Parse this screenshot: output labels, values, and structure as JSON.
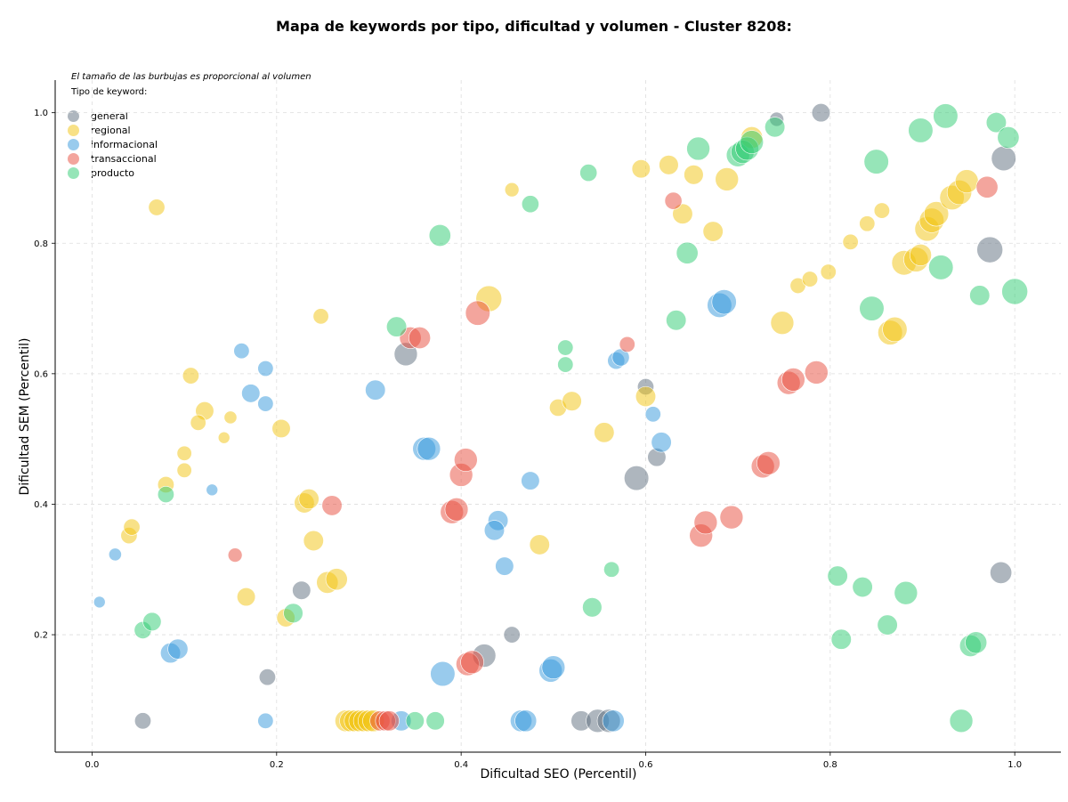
{
  "chart_data": {
    "type": "scatter",
    "title": "Mapa de keywords por tipo, dificultad y volumen - Cluster 8208:",
    "note": "El tamaño de las burbujas es proporcional al volumen",
    "legend_title": "Tipo de keyword:",
    "legend_position": "top-left",
    "xlabel": "Dificultad SEO (Percentil)",
    "ylabel": "Dificultad SEM (Percentil)",
    "xlim": [
      -0.04,
      1.05
    ],
    "ylim": [
      0.02,
      1.05
    ],
    "xticks": [
      "0.0",
      "0.2",
      "0.4",
      "0.6",
      "0.8",
      "1.0"
    ],
    "yticks": [
      "0.2",
      "0.4",
      "0.6",
      "0.8",
      "1.0"
    ],
    "grid": true,
    "point_format": "[x, y, volume_relative]",
    "series": [
      {
        "name": "general",
        "color": "#5d6d7e",
        "points": [
          [
            0.055,
            0.068,
            2
          ],
          [
            0.19,
            0.135,
            2
          ],
          [
            0.227,
            0.268,
            2.5
          ],
          [
            0.34,
            0.63,
            4
          ],
          [
            0.425,
            0.168,
            4
          ],
          [
            0.455,
            0.2,
            2
          ],
          [
            0.53,
            0.068,
            3
          ],
          [
            0.548,
            0.068,
            4
          ],
          [
            0.56,
            0.068,
            4
          ],
          [
            0.59,
            0.44,
            4.5
          ],
          [
            0.6,
            0.58,
            2
          ],
          [
            0.612,
            0.472,
            2.5
          ],
          [
            0.742,
            0.99,
            1.5
          ],
          [
            0.79,
            1.0,
            2.5
          ],
          [
            0.973,
            0.79,
            5
          ],
          [
            0.988,
            0.93,
            4.5
          ],
          [
            0.985,
            0.295,
            3.5
          ]
        ]
      },
      {
        "name": "regional",
        "color": "#f1c40f",
        "points": [
          [
            0.07,
            0.855,
            2
          ],
          [
            0.107,
            0.597,
            2
          ],
          [
            0.122,
            0.543,
            2.5
          ],
          [
            0.115,
            0.525,
            1.8
          ],
          [
            0.15,
            0.533,
            1.2
          ],
          [
            0.143,
            0.502,
            1
          ],
          [
            0.1,
            0.478,
            1.6
          ],
          [
            0.1,
            0.452,
            1.6
          ],
          [
            0.08,
            0.43,
            2
          ],
          [
            0.04,
            0.352,
            2
          ],
          [
            0.043,
            0.365,
            2
          ],
          [
            0.167,
            0.258,
            2.5
          ],
          [
            0.205,
            0.516,
            2.5
          ],
          [
            0.23,
            0.402,
            3
          ],
          [
            0.235,
            0.408,
            3
          ],
          [
            0.24,
            0.344,
            3
          ],
          [
            0.248,
            0.688,
            1.8
          ],
          [
            0.255,
            0.28,
            3.5
          ],
          [
            0.265,
            0.285,
            3.5
          ],
          [
            0.21,
            0.226,
            2.5
          ],
          [
            0.275,
            0.068,
            3.5
          ],
          [
            0.28,
            0.068,
            3.5
          ],
          [
            0.285,
            0.068,
            3.5
          ],
          [
            0.29,
            0.068,
            3.5
          ],
          [
            0.295,
            0.068,
            3.5
          ],
          [
            0.3,
            0.068,
            3.5
          ],
          [
            0.305,
            0.068,
            3.5
          ],
          [
            0.43,
            0.715,
            5
          ],
          [
            0.455,
            0.882,
            1.5
          ],
          [
            0.485,
            0.338,
            3
          ],
          [
            0.505,
            0.548,
            2.2
          ],
          [
            0.52,
            0.558,
            2.8
          ],
          [
            0.555,
            0.51,
            3
          ],
          [
            0.595,
            0.914,
            2.5
          ],
          [
            0.6,
            0.565,
            3
          ],
          [
            0.625,
            0.92,
            2.8
          ],
          [
            0.64,
            0.845,
            3
          ],
          [
            0.652,
            0.905,
            2.8
          ],
          [
            0.673,
            0.818,
            3
          ],
          [
            0.688,
            0.898,
            4
          ],
          [
            0.715,
            0.962,
            3.5
          ],
          [
            0.748,
            0.678,
            4
          ],
          [
            0.765,
            0.735,
            1.8
          ],
          [
            0.778,
            0.745,
            1.8
          ],
          [
            0.798,
            0.756,
            1.8
          ],
          [
            0.822,
            0.802,
            1.8
          ],
          [
            0.84,
            0.83,
            1.8
          ],
          [
            0.856,
            0.85,
            1.8
          ],
          [
            0.865,
            0.663,
            4.5
          ],
          [
            0.87,
            0.668,
            4.5
          ],
          [
            0.88,
            0.77,
            4.5
          ],
          [
            0.893,
            0.775,
            4.5
          ],
          [
            0.898,
            0.782,
            3.5
          ],
          [
            0.905,
            0.822,
            4.5
          ],
          [
            0.91,
            0.835,
            4.5
          ],
          [
            0.915,
            0.845,
            4.5
          ],
          [
            0.932,
            0.87,
            4.5
          ],
          [
            0.94,
            0.878,
            4.5
          ],
          [
            0.948,
            0.895,
            4
          ]
        ]
      },
      {
        "name": "informacional",
        "color": "#3498db",
        "points": [
          [
            0.008,
            0.25,
            1
          ],
          [
            0.025,
            0.323,
            1.2
          ],
          [
            0.085,
            0.172,
            3
          ],
          [
            0.093,
            0.178,
            3
          ],
          [
            0.13,
            0.422,
            1
          ],
          [
            0.162,
            0.635,
            1.8
          ],
          [
            0.172,
            0.57,
            2.5
          ],
          [
            0.188,
            0.608,
            1.8
          ],
          [
            0.188,
            0.554,
            1.8
          ],
          [
            0.188,
            0.068,
            1.8
          ],
          [
            0.307,
            0.575,
            3
          ],
          [
            0.335,
            0.068,
            3
          ],
          [
            0.36,
            0.485,
            4
          ],
          [
            0.365,
            0.485,
            4
          ],
          [
            0.38,
            0.14,
            4.5
          ],
          [
            0.44,
            0.375,
            3
          ],
          [
            0.436,
            0.36,
            3
          ],
          [
            0.447,
            0.305,
            2.5
          ],
          [
            0.475,
            0.436,
            2.5
          ],
          [
            0.465,
            0.068,
            3.5
          ],
          [
            0.47,
            0.068,
            3.5
          ],
          [
            0.497,
            0.145,
            4
          ],
          [
            0.5,
            0.15,
            4
          ],
          [
            0.565,
            0.068,
            3.5
          ],
          [
            0.568,
            0.62,
            2.2
          ],
          [
            0.573,
            0.625,
            2.2
          ],
          [
            0.608,
            0.538,
            1.8
          ],
          [
            0.617,
            0.495,
            3
          ],
          [
            0.68,
            0.705,
            4.5
          ],
          [
            0.685,
            0.71,
            4.5
          ]
        ]
      },
      {
        "name": "transaccional",
        "color": "#e74c3c",
        "points": [
          [
            0.155,
            0.322,
            1.5
          ],
          [
            0.26,
            0.398,
            3
          ],
          [
            0.312,
            0.068,
            3
          ],
          [
            0.318,
            0.068,
            3
          ],
          [
            0.322,
            0.068,
            3
          ],
          [
            0.345,
            0.655,
            3.5
          ],
          [
            0.355,
            0.655,
            3.5
          ],
          [
            0.39,
            0.388,
            4
          ],
          [
            0.395,
            0.392,
            4
          ],
          [
            0.4,
            0.445,
            4
          ],
          [
            0.405,
            0.468,
            4
          ],
          [
            0.407,
            0.155,
            4
          ],
          [
            0.412,
            0.158,
            4
          ],
          [
            0.418,
            0.693,
            4.5
          ],
          [
            0.58,
            0.645,
            1.8
          ],
          [
            0.63,
            0.865,
            2.2
          ],
          [
            0.66,
            0.352,
            4
          ],
          [
            0.665,
            0.372,
            4
          ],
          [
            0.693,
            0.38,
            4
          ],
          [
            0.727,
            0.458,
            4
          ],
          [
            0.733,
            0.463,
            4
          ],
          [
            0.755,
            0.586,
            4
          ],
          [
            0.76,
            0.591,
            4
          ],
          [
            0.785,
            0.602,
            4
          ],
          [
            0.97,
            0.886,
            3.5
          ]
        ]
      },
      {
        "name": "producto",
        "color": "#2ecc71",
        "points": [
          [
            0.055,
            0.207,
            2.2
          ],
          [
            0.065,
            0.22,
            2.5
          ],
          [
            0.08,
            0.415,
            2
          ],
          [
            0.218,
            0.233,
            2.8
          ],
          [
            0.33,
            0.672,
            3
          ],
          [
            0.35,
            0.068,
            2.5
          ],
          [
            0.372,
            0.068,
            2.5
          ],
          [
            0.377,
            0.812,
            3.5
          ],
          [
            0.475,
            0.86,
            2.2
          ],
          [
            0.513,
            0.64,
            1.8
          ],
          [
            0.513,
            0.614,
            1.8
          ],
          [
            0.538,
            0.908,
            2.2
          ],
          [
            0.542,
            0.242,
            2.8
          ],
          [
            0.563,
            0.3,
            1.8
          ],
          [
            0.633,
            0.682,
            3
          ],
          [
            0.645,
            0.785,
            3.5
          ],
          [
            0.657,
            0.945,
            4
          ],
          [
            0.7,
            0.935,
            4
          ],
          [
            0.705,
            0.94,
            4
          ],
          [
            0.71,
            0.945,
            4
          ],
          [
            0.715,
            0.955,
            4
          ],
          [
            0.74,
            0.978,
            3
          ],
          [
            0.808,
            0.29,
            3
          ],
          [
            0.812,
            0.193,
            3
          ],
          [
            0.835,
            0.273,
            3
          ],
          [
            0.845,
            0.7,
            4.5
          ],
          [
            0.85,
            0.925,
            4.5
          ],
          [
            0.862,
            0.215,
            3
          ],
          [
            0.882,
            0.264,
            4
          ],
          [
            0.898,
            0.973,
            4.5
          ],
          [
            0.92,
            0.763,
            4.5
          ],
          [
            0.925,
            0.995,
            4.5
          ],
          [
            0.942,
            0.068,
            4
          ],
          [
            0.952,
            0.183,
            3.5
          ],
          [
            0.958,
            0.188,
            3.5
          ],
          [
            0.962,
            0.72,
            3
          ],
          [
            0.98,
            0.985,
            3
          ],
          [
            0.993,
            0.962,
            3.5
          ],
          [
            1.0,
            0.726,
            5
          ]
        ]
      }
    ]
  }
}
